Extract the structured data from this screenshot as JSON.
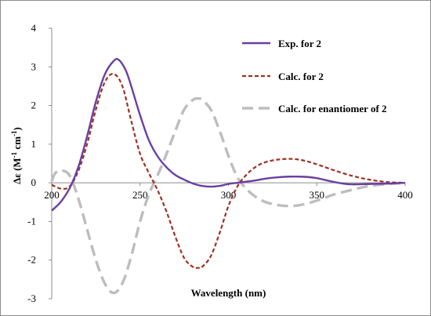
{
  "chart_data": {
    "type": "line",
    "xlabel": "Wavelength (nm)",
    "ylabel_parts": [
      "Δε (M",
      "-1",
      " cm",
      "-1",
      ")"
    ],
    "xlim": [
      200,
      400
    ],
    "ylim": [
      -3,
      4
    ],
    "xticks": [
      "200",
      "250",
      "300",
      "350",
      "400"
    ],
    "yticks": [
      "-3",
      "-2",
      "-1",
      "0",
      "1",
      "2",
      "3",
      "4"
    ],
    "grid": false,
    "legend_position": "top-right",
    "series": [
      {
        "name": "Exp. for 2",
        "color": "#6a3fa0",
        "dash": "solid",
        "x": [
          200,
          205,
          210,
          215,
          220,
          225,
          230,
          235,
          238,
          242,
          245,
          250,
          255,
          260,
          265,
          270,
          275,
          280,
          285,
          290,
          295,
          300,
          305,
          310,
          315,
          320,
          325,
          330,
          335,
          340,
          345,
          350,
          355,
          360,
          365,
          370,
          380,
          390,
          400
        ],
        "y": [
          -0.72,
          -0.5,
          -0.15,
          0.4,
          1.2,
          2.1,
          2.8,
          3.15,
          3.18,
          2.9,
          2.5,
          1.75,
          1.1,
          0.68,
          0.4,
          0.2,
          0.08,
          -0.02,
          -0.08,
          -0.1,
          -0.08,
          -0.03,
          0.0,
          0.03,
          0.06,
          0.1,
          0.13,
          0.15,
          0.16,
          0.16,
          0.15,
          0.12,
          0.07,
          0.02,
          -0.02,
          -0.04,
          -0.03,
          -0.02,
          0.0
        ]
      },
      {
        "name": "Calc. for 2",
        "color": "#a03020",
        "dash": "short",
        "x": [
          200,
          205,
          210,
          215,
          220,
          225,
          230,
          235,
          240,
          245,
          250,
          255,
          260,
          265,
          270,
          275,
          280,
          283,
          285,
          290,
          295,
          300,
          305,
          310,
          315,
          320,
          325,
          330,
          335,
          340,
          345,
          350,
          355,
          360,
          370,
          380,
          390,
          400
        ],
        "y": [
          -0.05,
          -0.15,
          -0.1,
          0.3,
          1.0,
          1.9,
          2.6,
          2.82,
          2.5,
          1.6,
          0.75,
          0.25,
          -0.2,
          -0.75,
          -1.4,
          -1.95,
          -2.18,
          -2.2,
          -2.18,
          -1.9,
          -1.3,
          -0.6,
          -0.1,
          0.2,
          0.4,
          0.52,
          0.58,
          0.61,
          0.62,
          0.6,
          0.55,
          0.48,
          0.4,
          0.32,
          0.18,
          0.08,
          0.02,
          0.0
        ]
      },
      {
        "name": "Calc. for enantiomer of 2",
        "color": "#bdbdbd",
        "dash": "long",
        "x": [
          200,
          202,
          205,
          210,
          215,
          220,
          225,
          230,
          235,
          240,
          245,
          250,
          255,
          260,
          265,
          270,
          275,
          280,
          283,
          285,
          290,
          295,
          300,
          305,
          310,
          315,
          320,
          325,
          330,
          335,
          340,
          345,
          350,
          355,
          360,
          370,
          380,
          390,
          400
        ],
        "y": [
          0.05,
          0.25,
          0.32,
          0.2,
          -0.4,
          -1.2,
          -2.0,
          -2.6,
          -2.85,
          -2.6,
          -1.9,
          -1.0,
          -0.3,
          0.2,
          0.75,
          1.35,
          1.9,
          2.15,
          2.18,
          2.15,
          1.9,
          1.35,
          0.7,
          0.15,
          -0.15,
          -0.35,
          -0.48,
          -0.55,
          -0.59,
          -0.6,
          -0.58,
          -0.53,
          -0.46,
          -0.38,
          -0.3,
          -0.18,
          -0.08,
          -0.03,
          0.0
        ]
      }
    ]
  }
}
